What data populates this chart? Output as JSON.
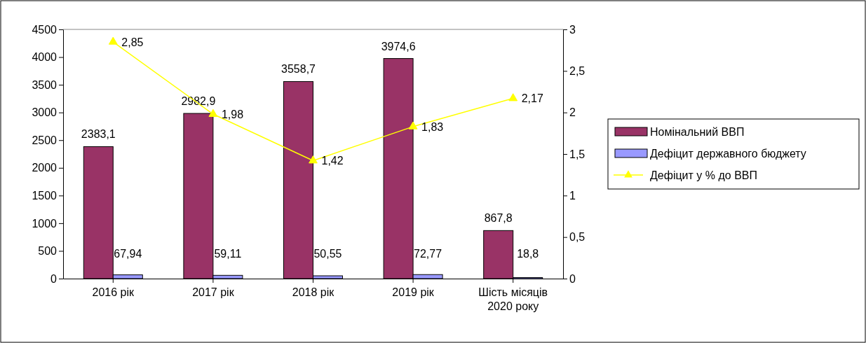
{
  "chart_data": {
    "type": "bar",
    "categories": [
      "2016 рік",
      "2017 рік",
      "2018 рік",
      "2019 рік",
      "Шість місяців\n2020 року"
    ],
    "series": [
      {
        "name": "Номінальний ВВП",
        "color": "#993366",
        "values": [
          2383.1,
          2982.9,
          3558.7,
          3974.6,
          867.8
        ],
        "value_labels": [
          "2383,1",
          "2982,9",
          "3558,7",
          "3974,6",
          "867,8"
        ]
      },
      {
        "name": "Дефіцит державного бюджету",
        "color": "#9999ff",
        "values": [
          67.94,
          59.11,
          50.55,
          72.77,
          18.8
        ],
        "value_labels": [
          "67,94",
          "59,11",
          "50,55",
          "72,77",
          "18,8"
        ]
      },
      {
        "name": "Дефіцит у % до ВВП",
        "type": "line",
        "axis": "y2",
        "color": "#ffff00",
        "marker": "triangle",
        "values": [
          2.85,
          1.98,
          1.42,
          1.83,
          2.17
        ],
        "value_labels": [
          "2,85",
          "1,98",
          "1,42",
          "1,83",
          "2,17"
        ]
      }
    ],
    "ylim": [
      0,
      4500
    ],
    "yticks": [
      0,
      500,
      1000,
      1500,
      2000,
      2500,
      3000,
      3500,
      4000,
      4500
    ],
    "y2lim": [
      0,
      3
    ],
    "y2ticks": [
      0,
      {
        "value": 0.5,
        "label": "0,5"
      },
      1,
      {
        "value": 1.5,
        "label": "1,5"
      },
      2,
      {
        "value": 2.5,
        "label": "2,5"
      },
      3
    ],
    "legend": "right",
    "grid": false
  }
}
